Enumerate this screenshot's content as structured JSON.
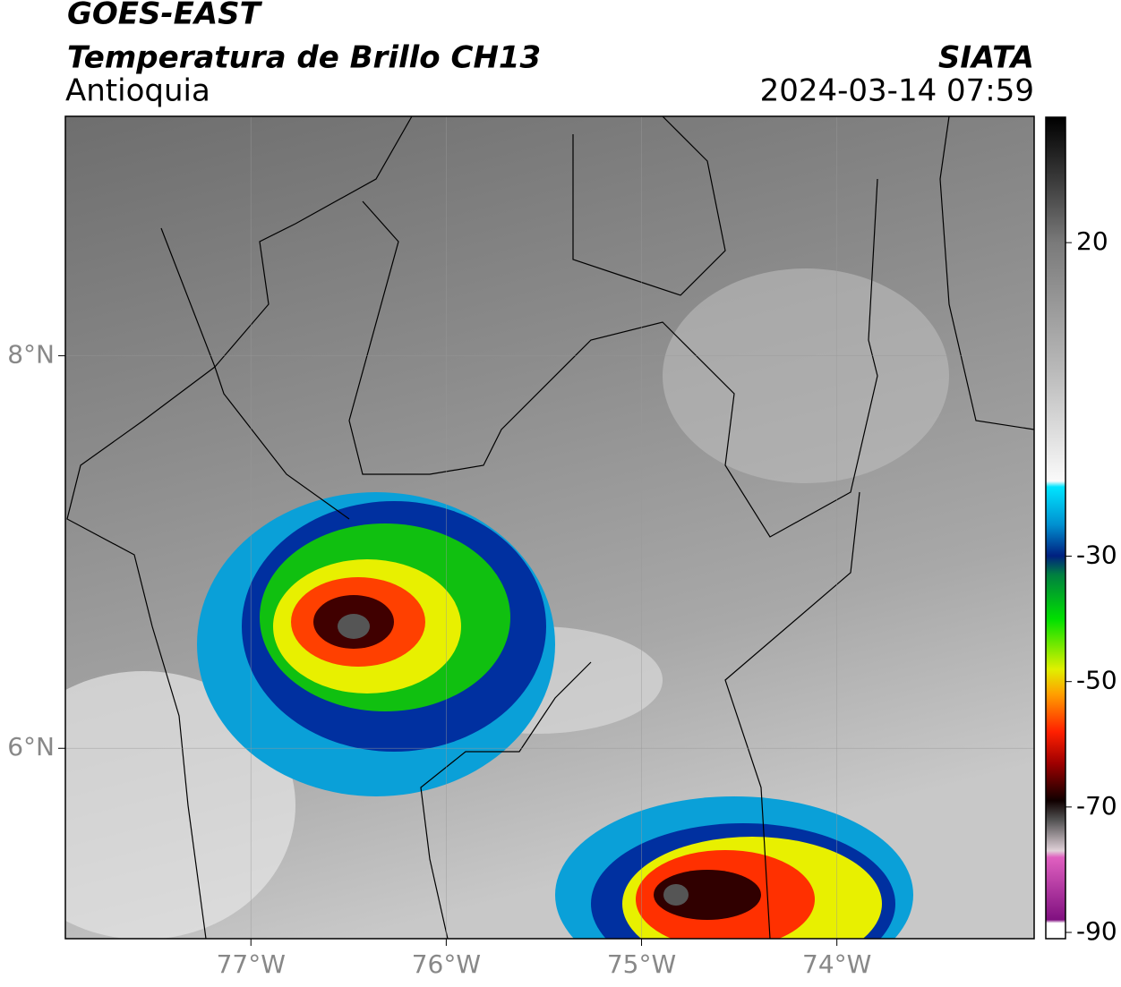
{
  "header": {
    "title": "GOES-EAST",
    "subtitle": "Temperatura de Brillo CH13",
    "region": "Antioquia",
    "source": "SIATA",
    "datetime": "2024-03-14 07:59"
  },
  "map": {
    "xlim": [
      -77.95,
      -72.99
    ],
    "ylim": [
      5.03,
      9.22
    ],
    "xticks": [
      {
        "value": -77,
        "label": "77°W"
      },
      {
        "value": -76,
        "label": "76°W"
      },
      {
        "value": -75,
        "label": "75°W"
      },
      {
        "value": -74,
        "label": "74°W"
      }
    ],
    "yticks": [
      {
        "value": 6,
        "label": "6°N"
      },
      {
        "value": 8,
        "label": "8°N"
      }
    ],
    "grid": true
  },
  "colorbar": {
    "range": [
      -91,
      40
    ],
    "ticks": [
      -90,
      -70,
      -50,
      -30,
      20
    ]
  }
}
